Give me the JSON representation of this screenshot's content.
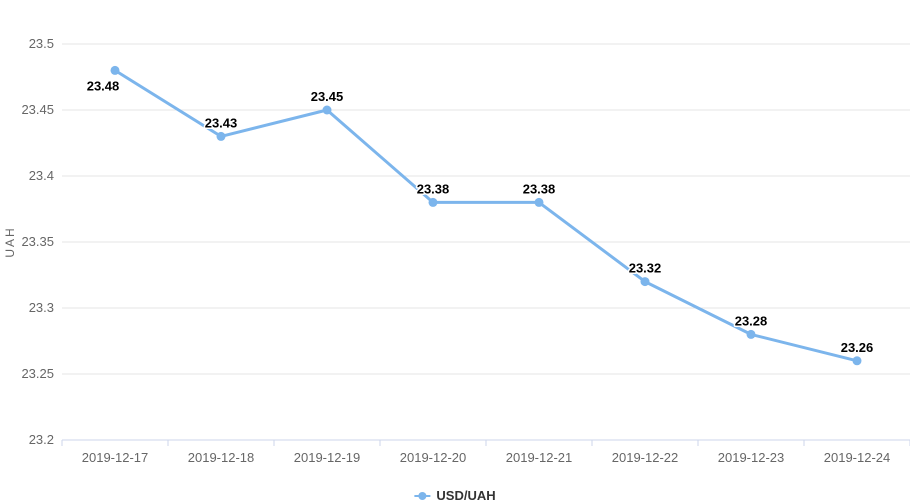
{
  "chart_data": {
    "type": "line",
    "title": "",
    "categories": [
      "2019-12-17",
      "2019-12-18",
      "2019-12-19",
      "2019-12-20",
      "2019-12-21",
      "2019-12-22",
      "2019-12-23",
      "2019-12-24"
    ],
    "series": [
      {
        "name": "USD/UAH",
        "color": "#7cb5ec",
        "values": [
          23.48,
          23.43,
          23.45,
          23.38,
          23.38,
          23.32,
          23.28,
          23.26
        ]
      }
    ],
    "data_labels": [
      "23.48",
      "23.43",
      "23.45",
      "23.38",
      "23.38",
      "23.32",
      "23.28",
      "23.26"
    ],
    "xlabel": "",
    "ylabel": "UAH",
    "ylim": [
      23.2,
      23.5
    ],
    "ytick_values": [
      23.5,
      23.45,
      23.4,
      23.35,
      23.3,
      23.25,
      23.2
    ],
    "ytick_labels": [
      "23.5",
      "23.45",
      "23.4",
      "23.35",
      "23.3",
      "23.25",
      "23.2"
    ],
    "grid": true,
    "legend_position": "bottom-center"
  },
  "legend": {
    "label": "USD/UAH"
  },
  "colors": {
    "line": "#7cb5ec",
    "marker": "#7cb5ec",
    "grid": "#e6e6e6",
    "axis_line": "#ccd6eb",
    "tick_label": "#666666",
    "axis_title": "#666666",
    "data_label": "#000000",
    "legend_text": "#333333"
  }
}
